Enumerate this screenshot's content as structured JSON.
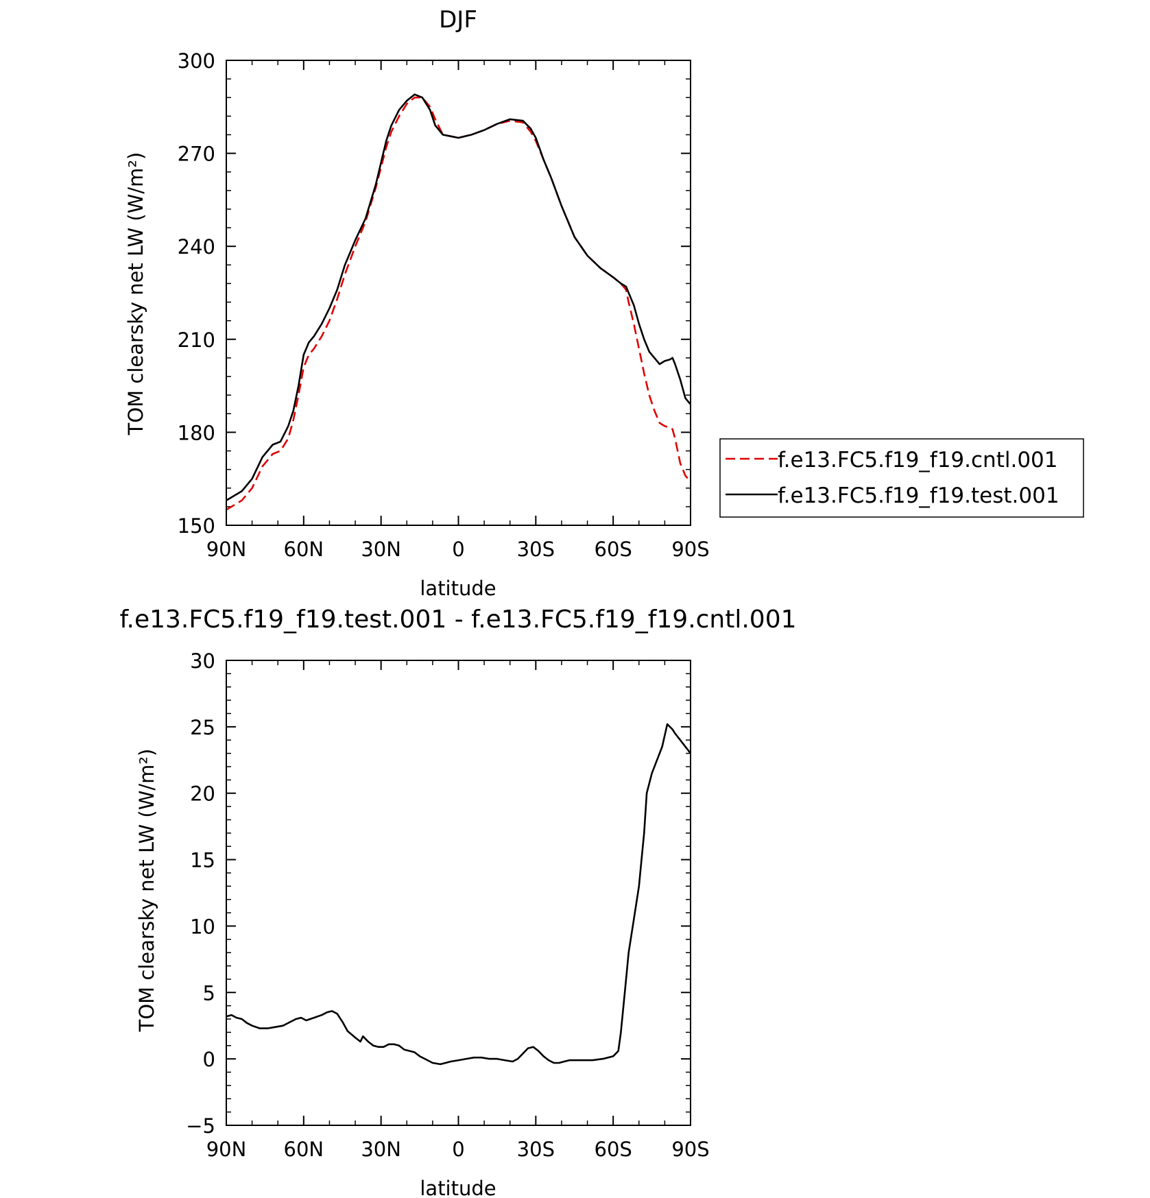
{
  "chart_data": [
    {
      "type": "line",
      "title": "DJF",
      "xlabel": "latitude",
      "ylabel": "TOM clearsky net LW (W/m²)",
      "ylim": [
        150,
        300
      ],
      "yticks": [
        150,
        180,
        210,
        240,
        270,
        300
      ],
      "xlim": [
        -90,
        90
      ],
      "xtick_values": [
        -90,
        -60,
        -30,
        0,
        30,
        60,
        90
      ],
      "xtick_labels": [
        "90N",
        "60N",
        "30N",
        "0",
        "30S",
        "60S",
        "90S"
      ],
      "grid": false,
      "legend": "right",
      "series": [
        {
          "name": "f.e13.FC5.f19_f19.cntl.001",
          "color": "#e00000",
          "dash": "dashed",
          "x": [
            -90,
            -84,
            -80,
            -76,
            -72,
            -69,
            -66,
            -64,
            -62,
            -60,
            -58,
            -56,
            -53,
            -50,
            -47,
            -44,
            -40,
            -36,
            -32,
            -28,
            -26,
            -23,
            -20,
            -17,
            -14,
            -11,
            -9,
            -6,
            -3,
            0,
            5,
            10,
            15,
            20,
            25,
            28,
            30,
            33,
            36,
            40,
            45,
            50,
            55,
            60,
            63,
            65,
            66,
            68,
            70,
            72,
            74,
            76,
            78,
            80,
            82,
            83,
            84,
            86,
            88,
            90
          ],
          "values": [
            155,
            158,
            162,
            169,
            173,
            174,
            178,
            184,
            192,
            201,
            205,
            207,
            211,
            216,
            223,
            231,
            240,
            248,
            259,
            272,
            277,
            282,
            286,
            288,
            288,
            285,
            281,
            276,
            275.5,
            275,
            276,
            277.5,
            279.5,
            280.5,
            280,
            277,
            274,
            268,
            262,
            253,
            243,
            237,
            233,
            230,
            228,
            226,
            222,
            215,
            207,
            199,
            192,
            187,
            183,
            182,
            181.5,
            181,
            178,
            170,
            166,
            164
          ]
        },
        {
          "name": "f.e13.FC5.f19_f19.test.001",
          "color": "#000000",
          "dash": "solid",
          "x": [
            -90,
            -84,
            -80,
            -76,
            -72,
            -69,
            -66,
            -64,
            -62,
            -60,
            -58,
            -56,
            -53,
            -50,
            -47,
            -44,
            -40,
            -36,
            -32,
            -28,
            -26,
            -23,
            -20,
            -17,
            -14,
            -11,
            -9,
            -6,
            -3,
            0,
            5,
            10,
            15,
            20,
            25,
            28,
            30,
            33,
            36,
            40,
            45,
            50,
            55,
            60,
            63,
            65,
            66,
            68,
            70,
            72,
            74,
            76,
            78,
            80,
            82,
            83,
            84,
            86,
            88,
            90
          ],
          "values": [
            158,
            161,
            165,
            172,
            176,
            177,
            182,
            187,
            195,
            205,
            209,
            211,
            215,
            220,
            226,
            234,
            242,
            249,
            260,
            274,
            279,
            284,
            287,
            289,
            288,
            284,
            279,
            276,
            275.5,
            275,
            276,
            277.5,
            279.5,
            281,
            280.5,
            278,
            275,
            268,
            262,
            253,
            243,
            237,
            233,
            230,
            228,
            227,
            225,
            221,
            215,
            210,
            206,
            204,
            202,
            203,
            203.5,
            204,
            202,
            197,
            191,
            189
          ]
        }
      ]
    },
    {
      "type": "line",
      "title": "f.e13.FC5.f19_f19.test.001 - f.e13.FC5.f19_f19.cntl.001",
      "xlabel": "latitude",
      "ylabel": "TOM clearsky net LW (W/m²)",
      "ylim": [
        -5,
        30
      ],
      "yticks": [
        -5,
        0,
        5,
        10,
        15,
        20,
        25,
        30
      ],
      "xlim": [
        -90,
        90
      ],
      "xtick_values": [
        -90,
        -60,
        -30,
        0,
        30,
        60,
        90
      ],
      "xtick_labels": [
        "90N",
        "60N",
        "30N",
        "0",
        "30S",
        "60S",
        "90S"
      ],
      "grid": false,
      "series": [
        {
          "color": "#000000",
          "dash": "solid",
          "x": [
            -90,
            -88,
            -86,
            -84,
            -82,
            -80,
            -77,
            -74,
            -71,
            -68,
            -65,
            -63,
            -61,
            -59,
            -56,
            -53,
            -51,
            -49,
            -47,
            -45,
            -43,
            -40,
            -38,
            -37,
            -35,
            -33,
            -31,
            -29,
            -27,
            -25,
            -23,
            -21,
            -19,
            -17,
            -15,
            -13,
            -10,
            -7,
            -5,
            -3,
            0,
            3,
            6,
            9,
            12,
            15,
            18,
            21,
            23,
            25,
            27,
            29,
            31,
            33,
            35,
            37,
            39,
            41,
            43,
            45,
            48,
            52,
            56,
            60,
            62,
            63,
            64,
            65,
            66,
            68,
            70,
            71,
            72,
            73,
            75,
            77,
            79,
            81,
            83,
            84,
            86,
            88,
            90
          ],
          "values": [
            3.2,
            3.3,
            3.1,
            3.0,
            2.7,
            2.5,
            2.3,
            2.3,
            2.4,
            2.5,
            2.8,
            3.0,
            3.1,
            2.9,
            3.1,
            3.3,
            3.5,
            3.6,
            3.4,
            2.8,
            2.1,
            1.6,
            1.3,
            1.7,
            1.3,
            1.0,
            0.9,
            0.9,
            1.1,
            1.1,
            1.0,
            0.7,
            0.6,
            0.5,
            0.2,
            0.0,
            -0.3,
            -0.4,
            -0.3,
            -0.2,
            -0.1,
            0.0,
            0.1,
            0.1,
            0.0,
            0.0,
            -0.1,
            -0.2,
            0.0,
            0.4,
            0.8,
            0.9,
            0.6,
            0.2,
            -0.1,
            -0.3,
            -0.3,
            -0.2,
            -0.1,
            -0.1,
            -0.1,
            -0.1,
            0.0,
            0.2,
            0.6,
            2.0,
            4.0,
            6.0,
            8.0,
            10.5,
            13.0,
            15.0,
            17.0,
            20.0,
            21.5,
            22.5,
            23.5,
            25.2,
            24.8,
            24.5,
            24.0,
            23.5,
            23.0
          ]
        }
      ]
    }
  ]
}
